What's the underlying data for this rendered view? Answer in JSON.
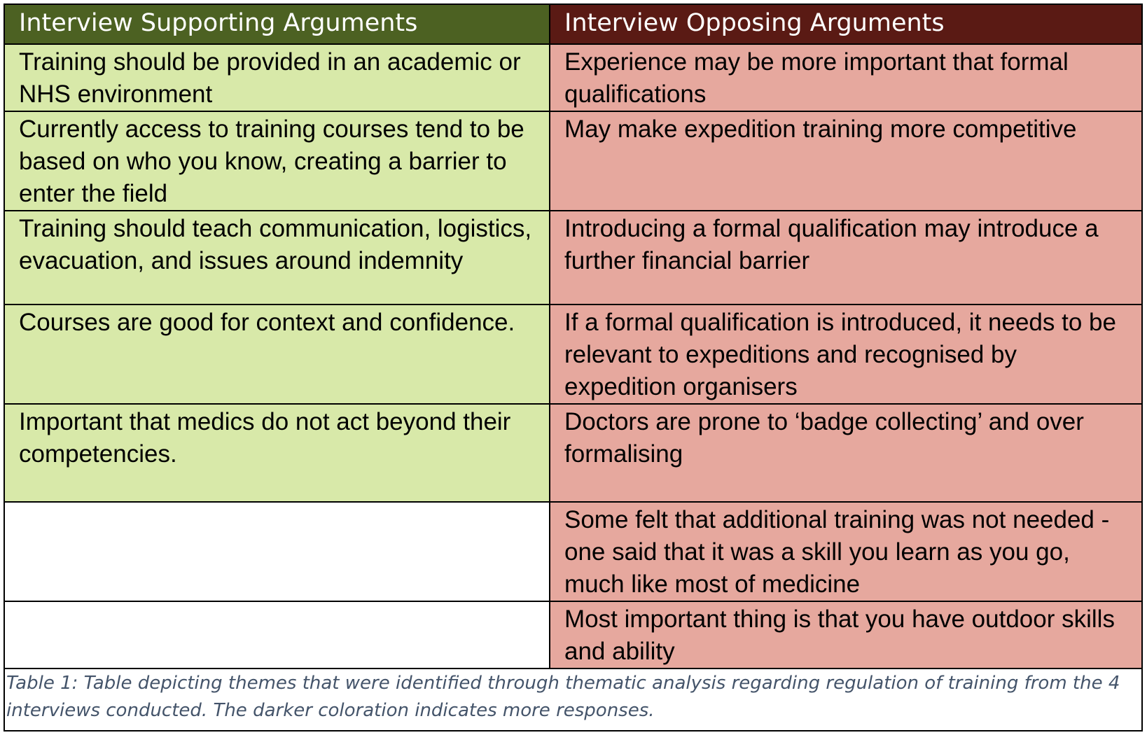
{
  "table": {
    "headers": {
      "supporting": "Interview Supporting Arguments",
      "opposing": "Interview Opposing Arguments"
    },
    "rows": [
      {
        "supporting": "Training should be provided in an academic or NHS environment",
        "opposing": "Experience may be more important that formal qualifications"
      },
      {
        "supporting": "Currently access to training courses tend to be based on who you know, creating a barrier to enter the field",
        "opposing": "May make expedition training more competitive"
      },
      {
        "supporting": "Training should teach communication, logistics, evacuation, and issues around indemnity",
        "opposing": "Introducing a formal qualification may introduce a further financial barrier"
      },
      {
        "supporting": "Courses are good for context and confidence.",
        "opposing": "If a formal qualification is introduced, it needs to be relevant to expeditions and recognised by expedition organisers"
      },
      {
        "supporting": "Important that medics do not act beyond their competencies.",
        "opposing": "Doctors are prone to ‘badge collecting’ and over formalising"
      },
      {
        "supporting": "",
        "opposing": "Some felt that additional training was not needed - one said that it was a skill you learn as you go, much like most of medicine"
      },
      {
        "supporting": "",
        "opposing": "Most important thing is that you have outdoor skills and ability"
      }
    ]
  },
  "caption": "Table 1:  Table depicting themes that were identified through thematic analysis regarding regulation of training from the 4 interviews conducted. The darker coloration indicates more responses.",
  "colors": {
    "support_header": "#4c6122",
    "oppose_header": "#5a1a14",
    "support_cell": "#d8e9a9",
    "oppose_cell": "#e6a89e",
    "caption_text": "#44546a"
  }
}
